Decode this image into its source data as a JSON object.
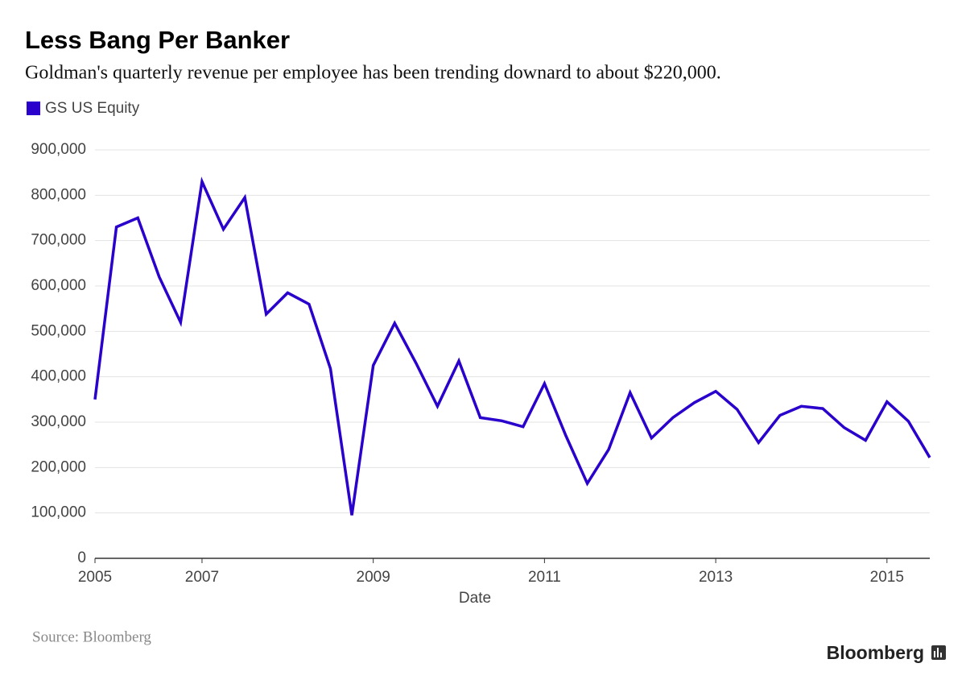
{
  "chart_data": {
    "type": "line",
    "title": "Less Bang Per Banker",
    "subtitle": "Goldman's quarterly revenue per employee has been trending downard to about $220,000.",
    "x_label": "Date",
    "source": "Source: Bloomberg",
    "logo": "Bloomberg",
    "x": [
      2005.75,
      2006,
      2006.25,
      2006.5,
      2006.75,
      2007,
      2007.25,
      2007.5,
      2007.75,
      2008,
      2008.25,
      2008.5,
      2008.75,
      2009,
      2009.25,
      2009.5,
      2009.75,
      2010,
      2010.25,
      2010.5,
      2010.75,
      2011,
      2011.25,
      2011.5,
      2011.75,
      2012,
      2012.25,
      2012.5,
      2012.75,
      2013,
      2013.25,
      2013.5,
      2013.75,
      2014,
      2014.25,
      2014.5,
      2014.75,
      2015,
      2015.25,
      2015.5
    ],
    "series": [
      {
        "name": "GS US Equity",
        "color": "#2a00cc",
        "values": [
          350000,
          730000,
          750000,
          620000,
          520000,
          830000,
          725000,
          795000,
          538000,
          585000,
          560000,
          418000,
          95000,
          425000,
          518000,
          430000,
          335000,
          435000,
          310000,
          303000,
          290000,
          385000,
          270000,
          165000,
          240000,
          365000,
          265000,
          310000,
          343000,
          368000,
          328000,
          255000,
          315000,
          335000,
          330000,
          288000,
          260000,
          345000,
          302000,
          222000
        ]
      }
    ],
    "xlim": [
      2005.75,
      2015.5
    ],
    "xticks": [
      {
        "value": 2005.75,
        "label": "2005"
      },
      2007,
      2009,
      2011,
      2013,
      2015
    ],
    "ylim": [
      0,
      900000
    ],
    "yticks": [
      0,
      {
        "value": 100000,
        "label": "100,000"
      },
      {
        "value": 200000,
        "label": "200,000"
      },
      {
        "value": 300000,
        "label": "300,000"
      },
      {
        "value": 400000,
        "label": "400,000"
      },
      {
        "value": 500000,
        "label": "500,000"
      },
      {
        "value": 600000,
        "label": "600,000"
      },
      {
        "value": 700000,
        "label": "700,000"
      },
      {
        "value": 800000,
        "label": "800,000"
      },
      {
        "value": 900000,
        "label": "900,000"
      }
    ],
    "grid": true
  }
}
